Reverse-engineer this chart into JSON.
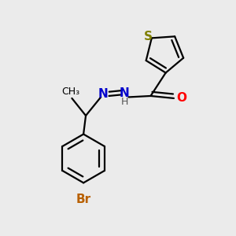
{
  "background_color": "#ebebeb",
  "atom_colors": {
    "S": "#808000",
    "N": "#0000cc",
    "O": "#ff0000",
    "Br": "#b86000",
    "C": "#000000",
    "H": "#555555"
  },
  "bond_color": "#000000",
  "bond_width": 1.6,
  "figsize": [
    3.0,
    3.0
  ],
  "dpi": 100
}
